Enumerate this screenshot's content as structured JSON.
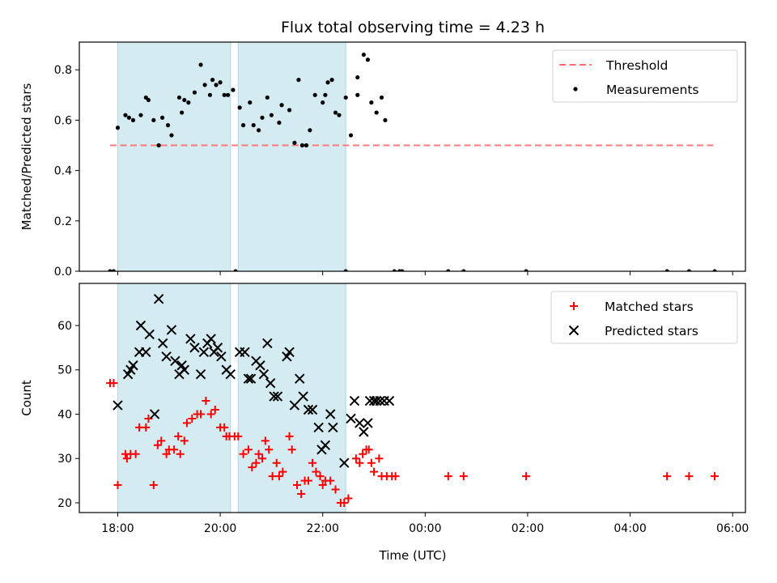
{
  "chart_data": [
    {
      "type": "scatter",
      "title": "Flux total observing time = 4.23 h",
      "xlabel": "",
      "ylabel": "Matched/Predicted stars",
      "ylim": [
        0,
        0.91
      ],
      "yticks": [
        "0.0",
        "0.2",
        "0.4",
        "0.6",
        "0.8"
      ],
      "xlim_hours": [
        17.25,
        30.25
      ],
      "grid": false,
      "legend_position": "top-right",
      "shaded_intervals": [
        [
          18.0,
          20.2
        ],
        [
          20.35,
          22.45
        ]
      ],
      "threshold": {
        "name": "Threshold",
        "y": 0.5,
        "x_range": [
          17.85,
          29.65
        ],
        "color": "#ff6b6b"
      },
      "series": [
        {
          "name": "Measurements",
          "color": "#000000",
          "points": [
            [
              17.85,
              0
            ],
            [
              17.92,
              0
            ],
            [
              18.0,
              0.57
            ],
            [
              18.15,
              0.62
            ],
            [
              18.22,
              0.61
            ],
            [
              18.3,
              0.6
            ],
            [
              18.45,
              0.62
            ],
            [
              18.55,
              0.69
            ],
            [
              18.6,
              0.68
            ],
            [
              18.7,
              0.6
            ],
            [
              18.8,
              0.5
            ],
            [
              18.87,
              0.61
            ],
            [
              18.98,
              0.58
            ],
            [
              19.05,
              0.54
            ],
            [
              19.2,
              0.69
            ],
            [
              19.25,
              0.63
            ],
            [
              19.3,
              0.68
            ],
            [
              19.38,
              0.67
            ],
            [
              19.5,
              0.71
            ],
            [
              19.62,
              0.82
            ],
            [
              19.7,
              0.74
            ],
            [
              19.8,
              0.7
            ],
            [
              19.85,
              0.76
            ],
            [
              19.92,
              0.74
            ],
            [
              20.0,
              0.75
            ],
            [
              20.08,
              0.7
            ],
            [
              20.15,
              0.7
            ],
            [
              20.25,
              0.72
            ],
            [
              20.3,
              0
            ],
            [
              20.38,
              0.65
            ],
            [
              20.45,
              0.58
            ],
            [
              20.58,
              0.67
            ],
            [
              20.65,
              0.58
            ],
            [
              20.75,
              0.56
            ],
            [
              20.82,
              0.61
            ],
            [
              20.92,
              0.69
            ],
            [
              21.0,
              0.62
            ],
            [
              21.15,
              0.59
            ],
            [
              21.2,
              0.66
            ],
            [
              21.35,
              0.64
            ],
            [
              21.45,
              0.51
            ],
            [
              21.53,
              0.76
            ],
            [
              21.6,
              0.5
            ],
            [
              21.68,
              0.5
            ],
            [
              21.75,
              0.56
            ],
            [
              21.85,
              0.7
            ],
            [
              22.0,
              0.67
            ],
            [
              22.05,
              0.7
            ],
            [
              22.1,
              0.75
            ],
            [
              22.18,
              0.76
            ],
            [
              22.25,
              0.63
            ],
            [
              22.32,
              0.62
            ],
            [
              22.45,
              0.69
            ],
            [
              22.45,
              0
            ],
            [
              22.55,
              0.54
            ],
            [
              22.68,
              0.7
            ],
            [
              22.68,
              0.77
            ],
            [
              22.8,
              0.86
            ],
            [
              22.88,
              0.84
            ],
            [
              22.95,
              0.67
            ],
            [
              23.05,
              0.63
            ],
            [
              23.15,
              0.69
            ],
            [
              23.22,
              0.6
            ],
            [
              23.4,
              0
            ],
            [
              23.5,
              0
            ],
            [
              23.55,
              0
            ],
            [
              24.45,
              0
            ],
            [
              24.75,
              0
            ],
            [
              25.97,
              0
            ],
            [
              28.72,
              0
            ],
            [
              29.15,
              0
            ],
            [
              29.65,
              0
            ]
          ]
        }
      ]
    },
    {
      "type": "scatter",
      "title": "",
      "xlabel": "Time (UTC)",
      "ylabel": "Count",
      "ylim": [
        17.8,
        69.5
      ],
      "yticks": [
        "20",
        "30",
        "40",
        "50",
        "60"
      ],
      "xlim_hours": [
        17.25,
        30.25
      ],
      "xticks": [
        "18:00",
        "20:00",
        "22:00",
        "00:00",
        "02:00",
        "04:00",
        "06:00"
      ],
      "grid": false,
      "legend_position": "top-right",
      "shaded_intervals": [
        [
          18.0,
          20.2
        ],
        [
          20.35,
          22.45
        ]
      ],
      "series": [
        {
          "name": "Matched stars",
          "marker": "plus",
          "color": "#ff0000",
          "points": [
            [
              17.85,
              47
            ],
            [
              17.92,
              47
            ],
            [
              18.0,
              24
            ],
            [
              18.15,
              31
            ],
            [
              18.18,
              30
            ],
            [
              18.25,
              31
            ],
            [
              18.35,
              31
            ],
            [
              18.42,
              37
            ],
            [
              18.55,
              37
            ],
            [
              18.6,
              39
            ],
            [
              18.7,
              24
            ],
            [
              18.78,
              33
            ],
            [
              18.85,
              34
            ],
            [
              18.95,
              31
            ],
            [
              19.0,
              32
            ],
            [
              19.1,
              32
            ],
            [
              19.18,
              35
            ],
            [
              19.22,
              31
            ],
            [
              19.3,
              34
            ],
            [
              19.35,
              38
            ],
            [
              19.45,
              39
            ],
            [
              19.55,
              40
            ],
            [
              19.62,
              40
            ],
            [
              19.72,
              43
            ],
            [
              19.82,
              40
            ],
            [
              19.9,
              41
            ],
            [
              20.0,
              37
            ],
            [
              20.08,
              37
            ],
            [
              20.12,
              35
            ],
            [
              20.18,
              35
            ],
            [
              20.28,
              35
            ],
            [
              20.35,
              35
            ],
            [
              20.45,
              31
            ],
            [
              20.55,
              32
            ],
            [
              20.62,
              28
            ],
            [
              20.7,
              29
            ],
            [
              20.75,
              31
            ],
            [
              20.82,
              30
            ],
            [
              20.88,
              34
            ],
            [
              20.95,
              32
            ],
            [
              21.02,
              26
            ],
            [
              21.1,
              29
            ],
            [
              21.15,
              26
            ],
            [
              21.22,
              27
            ],
            [
              21.35,
              35
            ],
            [
              21.4,
              32
            ],
            [
              21.5,
              24
            ],
            [
              21.58,
              22
            ],
            [
              21.65,
              25
            ],
            [
              21.72,
              25
            ],
            [
              21.8,
              29
            ],
            [
              21.87,
              27
            ],
            [
              21.95,
              26
            ],
            [
              22.0,
              24
            ],
            [
              22.05,
              25
            ],
            [
              22.15,
              25
            ],
            [
              22.25,
              23
            ],
            [
              22.35,
              20
            ],
            [
              22.42,
              20
            ],
            [
              22.5,
              21
            ],
            [
              22.65,
              30
            ],
            [
              22.72,
              29
            ],
            [
              22.78,
              31
            ],
            [
              22.85,
              32
            ],
            [
              22.9,
              32
            ],
            [
              22.95,
              29
            ],
            [
              23.0,
              27
            ],
            [
              23.1,
              30
            ],
            [
              23.15,
              26
            ],
            [
              23.25,
              26
            ],
            [
              23.35,
              26
            ],
            [
              23.42,
              26
            ],
            [
              24.45,
              26
            ],
            [
              24.75,
              26
            ],
            [
              25.97,
              26
            ],
            [
              28.72,
              26
            ],
            [
              29.15,
              26
            ],
            [
              29.65,
              26
            ]
          ]
        },
        {
          "name": "Predicted stars",
          "marker": "x",
          "color": "#000000",
          "points": [
            [
              18.0,
              42
            ],
            [
              18.2,
              49
            ],
            [
              18.25,
              50
            ],
            [
              18.3,
              51
            ],
            [
              18.42,
              54
            ],
            [
              18.45,
              60
            ],
            [
              18.55,
              54
            ],
            [
              18.62,
              58
            ],
            [
              18.72,
              40
            ],
            [
              18.8,
              66
            ],
            [
              18.88,
              56
            ],
            [
              18.95,
              53
            ],
            [
              19.05,
              59
            ],
            [
              19.12,
              52
            ],
            [
              19.2,
              49
            ],
            [
              19.25,
              51
            ],
            [
              19.3,
              50
            ],
            [
              19.42,
              57
            ],
            [
              19.5,
              55
            ],
            [
              19.62,
              49
            ],
            [
              19.68,
              54
            ],
            [
              19.75,
              56
            ],
            [
              19.82,
              57
            ],
            [
              19.88,
              54
            ],
            [
              19.95,
              55
            ],
            [
              20.02,
              53
            ],
            [
              20.12,
              50
            ],
            [
              20.2,
              49
            ],
            [
              20.38,
              54
            ],
            [
              20.48,
              54
            ],
            [
              20.55,
              48
            ],
            [
              20.6,
              48
            ],
            [
              20.7,
              52
            ],
            [
              20.78,
              51
            ],
            [
              20.85,
              49
            ],
            [
              20.92,
              56
            ],
            [
              20.98,
              47
            ],
            [
              21.05,
              44
            ],
            [
              21.12,
              44
            ],
            [
              21.3,
              53
            ],
            [
              21.35,
              54
            ],
            [
              21.45,
              42
            ],
            [
              21.55,
              48
            ],
            [
              21.62,
              44
            ],
            [
              21.72,
              41
            ],
            [
              21.8,
              41
            ],
            [
              21.92,
              37
            ],
            [
              21.98,
              32
            ],
            [
              22.05,
              33
            ],
            [
              22.15,
              40
            ],
            [
              22.2,
              37
            ],
            [
              22.42,
              29
            ],
            [
              22.55,
              39
            ],
            [
              22.62,
              43
            ],
            [
              22.72,
              38
            ],
            [
              22.8,
              36
            ],
            [
              22.88,
              38
            ],
            [
              22.92,
              43
            ],
            [
              23.0,
              43
            ],
            [
              23.05,
              43
            ],
            [
              23.12,
              43
            ],
            [
              23.2,
              43
            ],
            [
              23.3,
              43
            ]
          ]
        }
      ]
    }
  ]
}
